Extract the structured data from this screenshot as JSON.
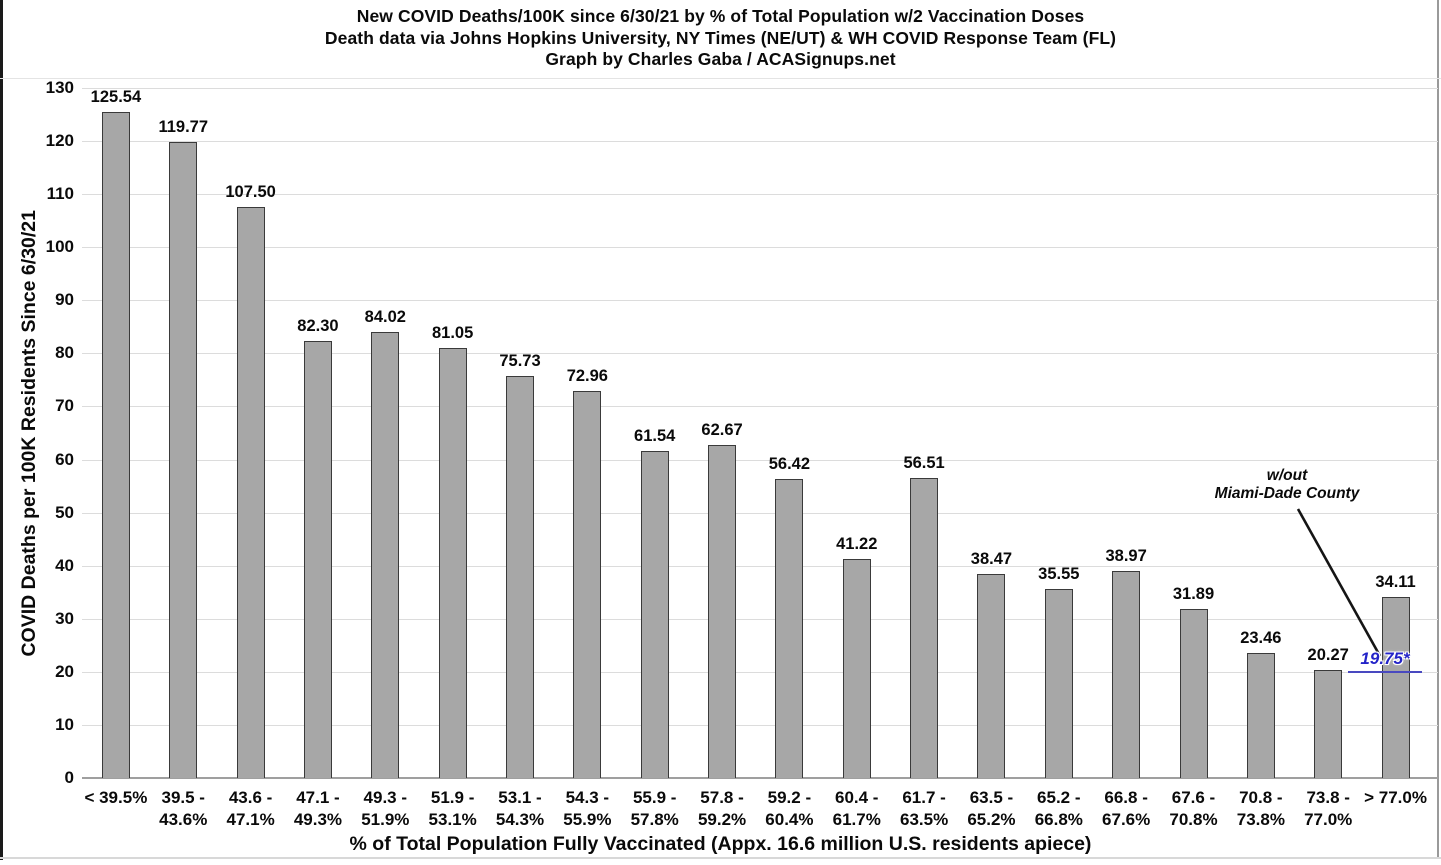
{
  "header": {
    "line1": "New COVID Deaths/100K since 6/30/21 by % of Total Population w/2 Vaccination Doses",
    "line2": "Death data via Johns Hopkins University, NY Times (NE/UT) & WH COVID Response Team (FL)",
    "line3": "Graph by Charles Gaba / ACASignups.net"
  },
  "chart_data": {
    "type": "bar",
    "title": "New COVID Deaths/100K since 6/30/21 by % of Total Population w/2 Vaccination Doses",
    "categories": [
      "< 39.5%",
      "39.5 - 43.6%",
      "43.6 - 47.1%",
      "47.1 - 49.3%",
      "49.3 - 51.9%",
      "51.9 - 53.1%",
      "53.1 - 54.3%",
      "54.3 - 55.9%",
      "55.9 - 57.8%",
      "57.8 - 59.2%",
      "59.2 - 60.4%",
      "60.4 - 61.7%",
      "61.7 - 63.5%",
      "63.5 - 65.2%",
      "65.2 - 66.8%",
      "66.8 - 67.6%",
      "67.6 - 70.8%",
      "70.8 - 73.8%",
      "73.8 - 77.0%",
      "> 77.0%"
    ],
    "values": [
      125.54,
      119.77,
      107.5,
      82.3,
      84.02,
      81.05,
      75.73,
      72.96,
      61.54,
      62.67,
      56.42,
      41.22,
      56.51,
      38.47,
      35.55,
      38.97,
      31.89,
      23.46,
      20.27,
      34.11
    ],
    "xlabel": "% of Total Population Fully Vaccinated (Appx. 16.6 million U.S. residents apiece)",
    "ylabel": "COVID Deaths per 100K Residents Since 6/30/21",
    "ylim": [
      0,
      130
    ],
    "ytick_step": 10,
    "grid": true,
    "legend": "none",
    "bar_color": "#a7a7a7",
    "bar_border_color": "#3a3a3a",
    "annotation": {
      "label_line1": "w/out",
      "label_line2": "Miami-Dade County",
      "value_text": "19.75*",
      "value_color": "#2323c8",
      "applies_to_category": "> 77.0%"
    }
  }
}
